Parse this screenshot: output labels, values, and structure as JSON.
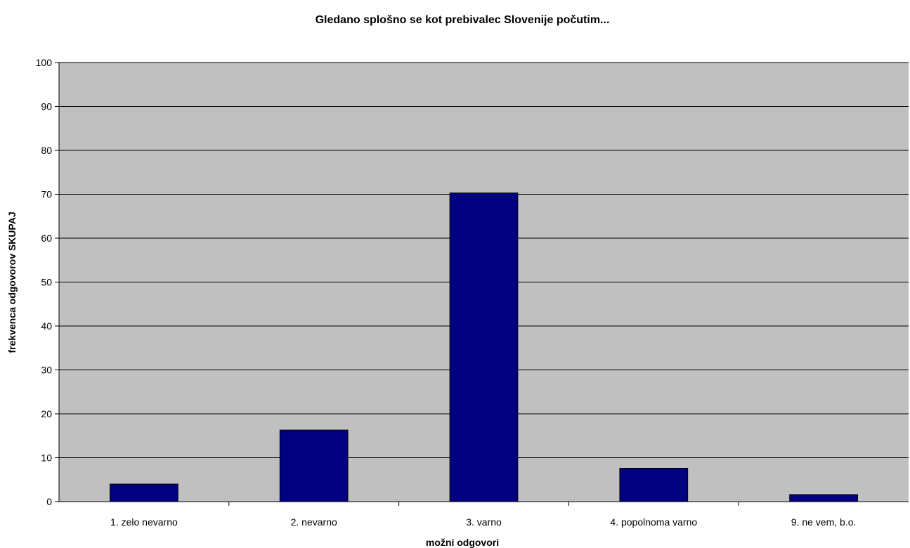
{
  "chart_data": {
    "type": "bar",
    "title": "Gledano splošno se kot prebivalec Slovenije počutim...",
    "xlabel": "možni odgovori",
    "ylabel": "frekvenca odgovorov SKUPAJ",
    "categories": [
      "1. zelo nevarno",
      "2. nevarno",
      "3. varno",
      "4. popolnoma varno",
      "9. ne vem, b.o."
    ],
    "values": [
      4.0,
      16.3,
      70.3,
      7.6,
      1.6
    ],
    "ylim": [
      0,
      100
    ],
    "yticks": [
      0,
      10,
      20,
      30,
      40,
      50,
      60,
      70,
      80,
      90,
      100
    ],
    "grid": true,
    "legend": "none",
    "colors": {
      "plot_background": "#c0c0c0",
      "bar_fill": "#000080",
      "bar_stroke": "#000000",
      "gridline": "#000000"
    }
  }
}
